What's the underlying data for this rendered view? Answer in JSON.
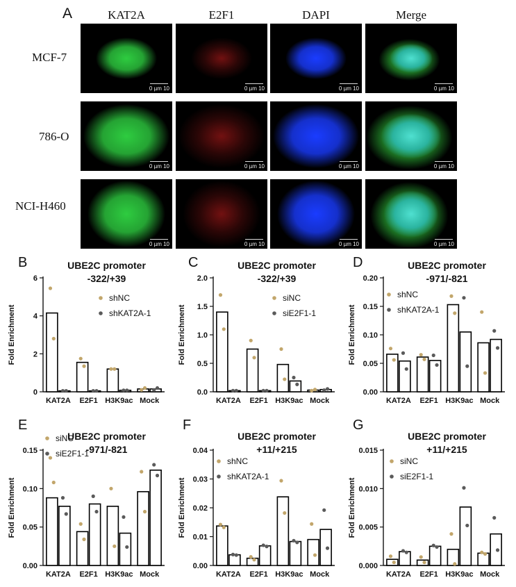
{
  "panel_a": {
    "letter": "A",
    "columns": [
      "KAT2A",
      "E2F1",
      "DAPI",
      "Merge"
    ],
    "rows": [
      {
        "label": "MCF-7",
        "scale": "0 µm 10"
      },
      {
        "label": "786-O",
        "scale": "0 µm 10"
      },
      {
        "label": "NCI-H460",
        "scale": "0 µm 10"
      }
    ],
    "channel_colors": {
      "KAT2A": "#2ecc40",
      "E2F1": "#d62020",
      "DAPI": "#1a3cff",
      "Merge": "#3fd8c0"
    }
  },
  "colors": {
    "shNC_si": "#c2a66b",
    "knockdown": "#5a5a5a",
    "bar_edge": "#000000"
  },
  "chart_data": [
    {
      "letter": "B",
      "type": "bar",
      "title": [
        "UBE2C promoter",
        "-322/+39"
      ],
      "ylabel": "Fold Enrichment",
      "categories": [
        "KAT2A",
        "E2F1",
        "H3K9ac",
        "Mock"
      ],
      "ylim": [
        0,
        6
      ],
      "yticks": [
        "0",
        "2",
        "4",
        "6"
      ],
      "ytick_values": [
        0,
        2,
        4,
        6
      ],
      "series": [
        {
          "name": "shNC",
          "values": [
            4.15,
            1.55,
            1.2,
            0.15
          ],
          "points": [
            [
              5.45,
              2.8
            ],
            [
              1.75,
              1.35
            ],
            [
              1.2,
              1.2
            ],
            [
              0.1,
              0.2
            ]
          ]
        },
        {
          "name": "shKAT2A-1",
          "values": [
            0.05,
            0.05,
            0.08,
            0.15
          ],
          "points": [
            [
              0.05,
              0.05
            ],
            [
              0.05,
              0.05
            ],
            [
              0.08,
              0.08
            ],
            [
              0.1,
              0.2
            ]
          ]
        }
      ]
    },
    {
      "letter": "C",
      "type": "bar",
      "title": [
        "UBE2C promoter",
        "-322/+39"
      ],
      "ylabel": "Fold Enrichment",
      "categories": [
        "KAT2A",
        "E2F1",
        "H3K9ac",
        "Mock"
      ],
      "ylim": [
        0,
        2
      ],
      "yticks": [
        "0.0",
        "0.5",
        "1.0",
        "1.5",
        "2.0"
      ],
      "ytick_values": [
        0,
        0.5,
        1,
        1.5,
        2
      ],
      "series": [
        {
          "name": "siNC",
          "values": [
            1.4,
            0.75,
            0.48,
            0.03
          ],
          "points": [
            [
              1.7,
              1.1
            ],
            [
              0.9,
              0.6
            ],
            [
              0.75,
              0.22
            ],
            [
              0.02,
              0.04
            ]
          ]
        },
        {
          "name": "siE2F1-1",
          "values": [
            0.02,
            0.02,
            0.19,
            0.04
          ],
          "points": [
            [
              0.02,
              0.02
            ],
            [
              0.02,
              0.02
            ],
            [
              0.25,
              0.13
            ],
            [
              0.03,
              0.05
            ]
          ]
        }
      ]
    },
    {
      "letter": "D",
      "type": "bar",
      "title": [
        "UBE2C promoter",
        "-971/-821"
      ],
      "ylabel": "Fold Enrichment",
      "categories": [
        "KAT2A",
        "E2F1",
        "H3K9ac",
        "Mock"
      ],
      "ylim": [
        0,
        0.2
      ],
      "yticks": [
        "0.00",
        "0.05",
        "0.10",
        "0.15",
        "0.20"
      ],
      "ytick_values": [
        0,
        0.05,
        0.1,
        0.15,
        0.2
      ],
      "series": [
        {
          "name": "shNC",
          "values": [
            0.066,
            0.061,
            0.153,
            0.086
          ],
          "points": [
            [
              0.076,
              0.056
            ],
            [
              0.065,
              0.057
            ],
            [
              0.168,
              0.138
            ],
            [
              0.14,
              0.033
            ]
          ]
        },
        {
          "name": "shKAT2A-1",
          "values": [
            0.054,
            0.055,
            0.105,
            0.092
          ],
          "points": [
            [
              0.068,
              0.04
            ],
            [
              0.064,
              0.047
            ],
            [
              0.165,
              0.045
            ],
            [
              0.107,
              0.077
            ]
          ]
        }
      ]
    },
    {
      "letter": "E",
      "type": "bar",
      "title": [
        "UBE2C promoter",
        "-971/-821"
      ],
      "ylabel": "Fold Enrichment",
      "categories": [
        "KAT2A",
        "E2F1",
        "H3K9ac",
        "Mock"
      ],
      "ylim": [
        0,
        0.15
      ],
      "yticks": [
        "0.00",
        "0.05",
        "0.10",
        "0.15"
      ],
      "ytick_values": [
        0,
        0.05,
        0.1,
        0.15
      ],
      "series": [
        {
          "name": "siNC",
          "values": [
            0.088,
            0.044,
            0.077,
            0.096
          ],
          "points": [
            [
              0.14,
              0.108
            ],
            [
              0.054,
              0.034
            ],
            [
              0.1,
              0.025
            ],
            [
              0.122,
              0.07
            ]
          ]
        },
        {
          "name": "siE2F1-1",
          "values": [
            0.077,
            0.08,
            0.042,
            0.124
          ],
          "points": [
            [
              0.088,
              0.067
            ],
            [
              0.09,
              0.07
            ],
            [
              0.063,
              0.024
            ],
            [
              0.131,
              0.117
            ]
          ]
        }
      ]
    },
    {
      "letter": "F",
      "type": "bar",
      "title": [
        "UBE2C promoter",
        "+11/+215"
      ],
      "ylabel": "Fold Enrichment",
      "categories": [
        "KAT2A",
        "E2F1",
        "H3K9ac",
        "Mock"
      ],
      "ylim": [
        0,
        0.04
      ],
      "yticks": [
        "0.00",
        "0.01",
        "0.02",
        "0.03",
        "0.04"
      ],
      "ytick_values": [
        0,
        0.01,
        0.02,
        0.03,
        0.04
      ],
      "series": [
        {
          "name": "shNC",
          "values": [
            0.0137,
            0.0025,
            0.0238,
            0.009
          ],
          "points": [
            [
              0.0142,
              0.0132
            ],
            [
              0.003,
              0.002
            ],
            [
              0.0294,
              0.0182
            ],
            [
              0.0144,
              0.0036
            ]
          ]
        },
        {
          "name": "shKAT2A-1",
          "values": [
            0.0037,
            0.0068,
            0.0083,
            0.0125
          ],
          "points": [
            [
              0.0038,
              0.0036
            ],
            [
              0.007,
              0.0066
            ],
            [
              0.0086,
              0.008
            ],
            [
              0.0192,
              0.006
            ]
          ]
        }
      ]
    },
    {
      "letter": "G",
      "type": "bar",
      "title": [
        "UBE2C promoter",
        "+11/+215"
      ],
      "ylabel": "Fold Enrichment",
      "categories": [
        "KAT2A",
        "E2F1",
        "H3K9ac",
        "Mock"
      ],
      "ylim": [
        0,
        0.015
      ],
      "yticks": [
        "0.000",
        "0.005",
        "0.010",
        "0.015"
      ],
      "ytick_values": [
        0,
        0.005,
        0.01,
        0.015
      ],
      "series": [
        {
          "name": "siNC",
          "values": [
            0.0008,
            0.0007,
            0.0021,
            0.0016
          ],
          "points": [
            [
              0.0012,
              0.0004
            ],
            [
              0.0011,
              0.0004
            ],
            [
              0.0041,
              0.0002
            ],
            [
              0.0017,
              0.0015
            ]
          ]
        },
        {
          "name": "siE2F1-1",
          "values": [
            0.0018,
            0.0025,
            0.0076,
            0.0041
          ],
          "points": [
            [
              0.0019,
              0.0017
            ],
            [
              0.0026,
              0.0024
            ],
            [
              0.0101,
              0.0052
            ],
            [
              0.0062,
              0.002
            ]
          ]
        }
      ]
    }
  ]
}
